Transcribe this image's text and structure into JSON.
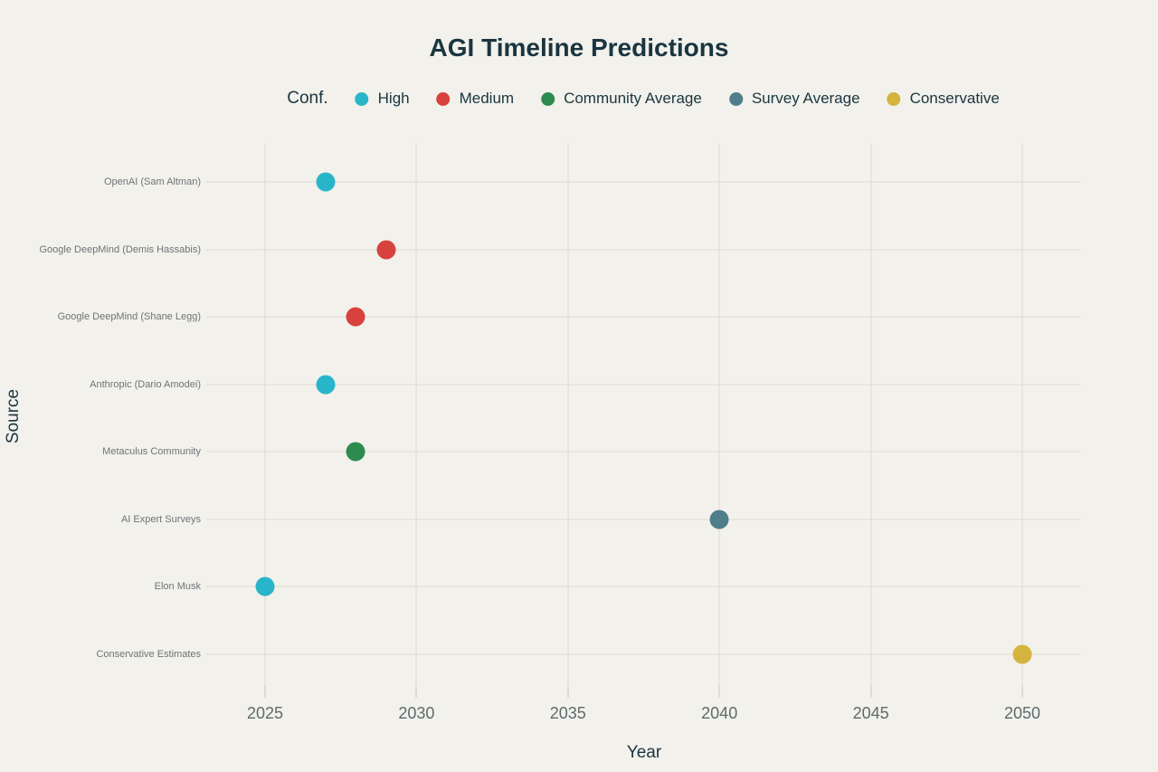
{
  "chart_data": {
    "type": "scatter",
    "title": "AGI Timeline Predictions",
    "xlabel": "Year",
    "ylabel": "Source",
    "x_ticks": [
      2025,
      2030,
      2035,
      2040,
      2045,
      2050
    ],
    "xlim": [
      2023,
      2052
    ],
    "grid": true,
    "legend": {
      "title": "Conf.",
      "position": "top-center",
      "entries": [
        {
          "label": "High",
          "color": "#29b5c9"
        },
        {
          "label": "Medium",
          "color": "#d8423e"
        },
        {
          "label": "Community Average",
          "color": "#2e8b50"
        },
        {
          "label": "Survey Average",
          "color": "#4f7d89"
        },
        {
          "label": "Conservative",
          "color": "#d5b33f"
        }
      ]
    },
    "categories": [
      "OpenAI (Sam Altman)",
      "Google DeepMind (Demis Hassabis)",
      "Google DeepMind (Shane Legg)",
      "Anthropic (Dario Amodei)",
      "Metaculus Community",
      "AI Expert Surveys",
      "Elon Musk",
      "Conservative Estimates"
    ],
    "points": [
      {
        "source": "OpenAI (Sam Altman)",
        "year": 2027,
        "confidence": "High"
      },
      {
        "source": "Google DeepMind (Demis Hassabis)",
        "year": 2029,
        "confidence": "Medium"
      },
      {
        "source": "Google DeepMind (Shane Legg)",
        "year": 2028,
        "confidence": "Medium"
      },
      {
        "source": "Anthropic (Dario Amodei)",
        "year": 2027,
        "confidence": "High"
      },
      {
        "source": "Metaculus Community",
        "year": 2028,
        "confidence": "Community Average"
      },
      {
        "source": "AI Expert Surveys",
        "year": 2040,
        "confidence": "Survey Average"
      },
      {
        "source": "Elon Musk",
        "year": 2025,
        "confidence": "High"
      },
      {
        "source": "Conservative Estimates",
        "year": 2050,
        "confidence": "Conservative"
      }
    ],
    "colors": {
      "background": "#f2f1eb",
      "gridline": "#dcdad1",
      "title_text": "#1a3540",
      "tick_text": "#5e6a6e",
      "category_text": "#6d7478"
    }
  }
}
